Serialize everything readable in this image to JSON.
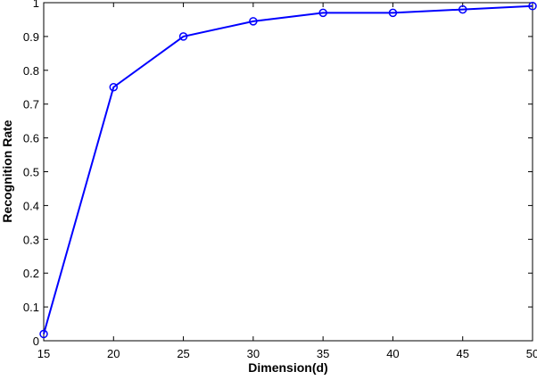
{
  "chart_data": {
    "type": "line",
    "xlabel": "Dimension(d)",
    "ylabel": "Recognition Rate",
    "x": [
      15,
      20,
      25,
      30,
      35,
      40,
      45,
      50
    ],
    "series": [
      {
        "color": "#0000ff",
        "values": [
          0.02,
          0.75,
          0.9,
          0.945,
          0.97,
          0.97,
          0.98,
          0.99
        ]
      }
    ],
    "xlim": [
      15,
      50
    ],
    "xticks": [
      15,
      20,
      25,
      30,
      35,
      40,
      45,
      50
    ],
    "ylim": [
      0,
      1
    ],
    "yticks": [
      0,
      0.1,
      0.2,
      0.3,
      0.4,
      0.5,
      0.6,
      0.7,
      0.8,
      0.9,
      1
    ],
    "grid": false,
    "marker": "circle"
  }
}
